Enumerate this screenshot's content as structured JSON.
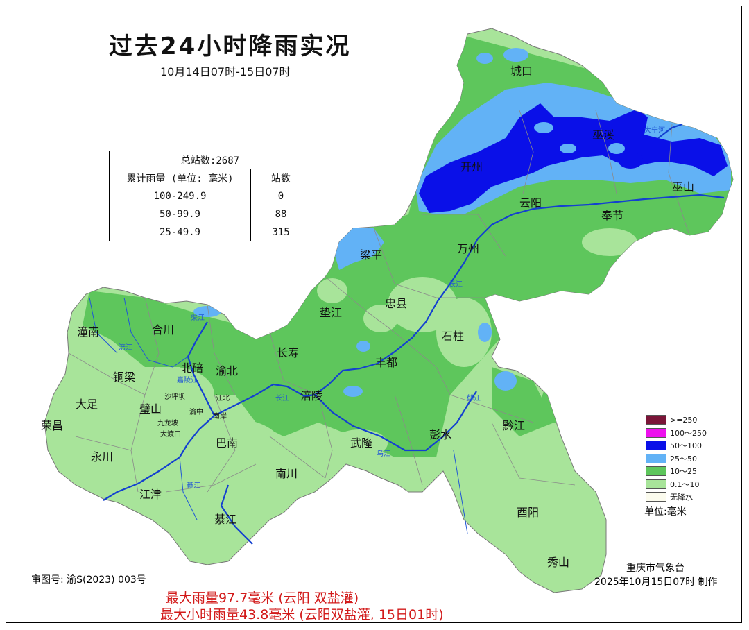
{
  "title": "过去24小时降雨实况",
  "subtitle": "10月14日07时-15日07时",
  "stats": {
    "total": "总站数:2687",
    "header_range": "累计雨量 (单位: 毫米)",
    "header_count": "站数",
    "rows": [
      {
        "range": "100-249.9",
        "count": "0"
      },
      {
        "range": "50-99.9",
        "count": "88"
      },
      {
        "range": "25-49.9",
        "count": "315"
      }
    ]
  },
  "legend": [
    {
      "label": ">=250",
      "color": "#7a1538"
    },
    {
      "label": "100～250",
      "color": "#ee10ee"
    },
    {
      "label": "50～100",
      "color": "#0a10e8"
    },
    {
      "label": "25～50",
      "color": "#62b2f6"
    },
    {
      "label": "10～25",
      "color": "#5ec65c"
    },
    {
      "label": "0.1～10",
      "color": "#a8e49a"
    },
    {
      "label": "无降水",
      "color": "#fbfbee"
    }
  ],
  "unit": "单位:毫米",
  "review_no": "审图号: 渝S(2023) 003号",
  "agency": "重庆市气象台",
  "made": "2025年10月15日07时 制作",
  "max_rain": "最大雨量97.7毫米 (云阳 双盐灌)",
  "max_hourly": "最大小时雨量43.8毫米 (云阳双盐灌, 15日01时)",
  "places": {
    "chengkou": "城口",
    "wuxi": "巫溪",
    "kaizhou": "开州",
    "yunyang": "云阳",
    "wushan": "巫山",
    "fengjie": "奉节",
    "liangping": "梁平",
    "wanzhou": "万州",
    "dianjiang": "垫江",
    "zhongxian": "忠县",
    "shizhu": "石柱",
    "tongnan": "潼南",
    "hechuan": "合川",
    "changshou": "长寿",
    "beibei": "北碚",
    "yubei": "渝北",
    "fengdu": "丰都",
    "tongliang": "铜梁",
    "fuling": "涪陵",
    "dazu": "大足",
    "bishan": "璧山",
    "rongchang": "荣昌",
    "banan": "巴南",
    "wulong": "武隆",
    "pengshui": "彭水",
    "qianjiang": "黔江",
    "yongchuan": "永川",
    "nanchuan": "南川",
    "jiangjin": "江津",
    "youyang": "酉阳",
    "qijiang": "綦江",
    "xiushan": "秀山"
  },
  "small_places": {
    "shapingba": "沙坪坝",
    "dadukou": "大渡口",
    "jiulongpo": "九龙坡",
    "yuzhong": "渝中",
    "jiangbei": "江北",
    "nanan": "南岸"
  },
  "rivers": {
    "daning": "大宁河",
    "changjiang_e": "长江",
    "changjiang_w": "长江",
    "fujiang": "涪江",
    "qujiang": "渠江",
    "jialing": "嘉陵江",
    "wujiang": "乌江",
    "qijiang_r": "綦江",
    "yujiang": "郁江"
  }
}
